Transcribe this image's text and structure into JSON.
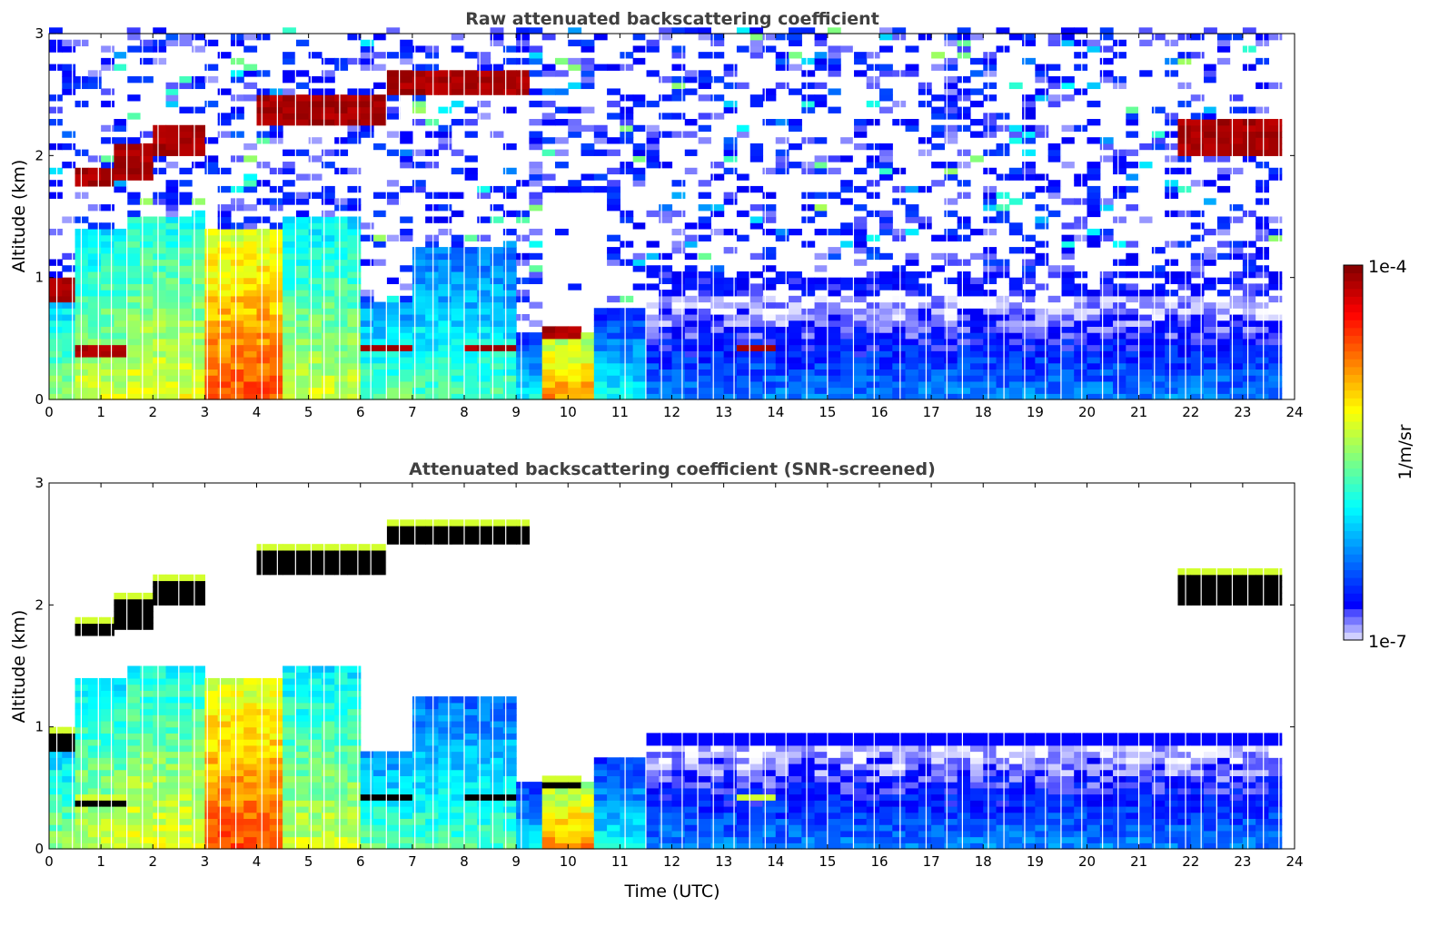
{
  "chart_data": {
    "type": "heatmap",
    "panels": [
      {
        "id": "raw",
        "title": "Raw attenuated backscattering coefficient",
        "xlabel": "",
        "ylabel": "Altitude (km)",
        "screened": false
      },
      {
        "id": "screened",
        "title": "Attenuated backscattering coefficient (SNR-screened)",
        "xlabel": "Time (UTC)",
        "ylabel": "Altitude (km)",
        "screened": true
      }
    ],
    "xlim": [
      0,
      24
    ],
    "ylim": [
      0,
      3
    ],
    "xticks": [
      "0",
      "1",
      "2",
      "3",
      "4",
      "5",
      "6",
      "7",
      "8",
      "9",
      "10",
      "11",
      "12",
      "13",
      "14",
      "15",
      "16",
      "17",
      "18",
      "19",
      "20",
      "21",
      "22",
      "23",
      "24"
    ],
    "yticks": [
      "0",
      "1",
      "2",
      "3"
    ],
    "colorbar": {
      "label": "1/m/sr",
      "min_label": "1e-7",
      "max_label": "1e-4",
      "range_log10": [
        -7,
        -4
      ],
      "colormap": "jet"
    },
    "data_end_utc": 23.8,
    "boundary_layer": [
      {
        "t": [
          0,
          0.5
        ],
        "top_km": 1.0,
        "surface_log10": -5.5
      },
      {
        "t": [
          0.5,
          1.5
        ],
        "top_km": 1.4,
        "surface_log10": -5.3
      },
      {
        "t": [
          1.5,
          3.1
        ],
        "top_km": 1.5,
        "surface_log10": -5.2
      },
      {
        "t": [
          3.1,
          4.6
        ],
        "top_km": 1.4,
        "surface_log10": -4.6
      },
      {
        "t": [
          4.6,
          6.0
        ],
        "top_km": 1.5,
        "surface_log10": -5.3
      },
      {
        "t": [
          6.0,
          7.0
        ],
        "top_km": 0.8,
        "surface_log10": -5.6
      },
      {
        "t": [
          7.0,
          9.0
        ],
        "top_km": 1.25,
        "surface_log10": -5.7
      },
      {
        "t": [
          9.0,
          9.5
        ],
        "top_km": 0.55,
        "surface_log10": -5.9
      },
      {
        "t": [
          9.5,
          10.6
        ],
        "top_km": 0.55,
        "surface_log10": -4.8
      },
      {
        "t": [
          10.6,
          11.5
        ],
        "top_km": 0.75,
        "surface_log10": -5.9
      },
      {
        "t": [
          11.5,
          23.8
        ],
        "top_km": 0.85,
        "surface_log10": -6.3
      }
    ],
    "cloud_layers": [
      {
        "t": [
          0.0,
          0.5
        ],
        "base_km": 0.8,
        "top_km": 1.0
      },
      {
        "t": [
          0.5,
          1.3
        ],
        "base_km": 1.75,
        "top_km": 1.9
      },
      {
        "t": [
          1.3,
          1.9
        ],
        "base_km": 1.8,
        "top_km": 2.1
      },
      {
        "t": [
          2.0,
          3.1
        ],
        "base_km": 2.0,
        "top_km": 2.25
      },
      {
        "t": [
          4.0,
          6.6
        ],
        "base_km": 2.25,
        "top_km": 2.5
      },
      {
        "t": [
          6.6,
          9.2
        ],
        "base_km": 2.48,
        "top_km": 2.7
      },
      {
        "t": [
          21.7,
          23.8
        ],
        "base_km": 2.0,
        "top_km": 2.3
      },
      {
        "t": [
          0.6,
          1.5
        ],
        "base_km": 0.35,
        "top_km": 0.45
      },
      {
        "t": [
          6.0,
          7.0
        ],
        "base_km": 0.38,
        "top_km": 0.47
      },
      {
        "t": [
          8.0,
          9.0
        ],
        "base_km": 0.38,
        "top_km": 0.47
      },
      {
        "t": [
          9.5,
          10.2
        ],
        "base_km": 0.48,
        "top_km": 0.58
      },
      {
        "t": [
          13.3,
          14.0
        ],
        "base_km": 0.4,
        "top_km": 0.45
      }
    ],
    "missing_profiles_utc": [
      0.15,
      0.45,
      0.62,
      0.95,
      1.2,
      1.5,
      1.8,
      2.1,
      2.5,
      2.8,
      3.05,
      3.3,
      3.6,
      4.1,
      4.4,
      4.75,
      5.05,
      5.3,
      5.6,
      5.95,
      6.2,
      6.5,
      6.75,
      7.05,
      7.4,
      7.7,
      8.0,
      8.3,
      8.55,
      8.8,
      9.1,
      11.1,
      11.5,
      11.8,
      12.2,
      12.5,
      12.8,
      13.2,
      13.5,
      13.8,
      14.2,
      14.6,
      15.0,
      15.5,
      15.9,
      16.4,
      16.9,
      17.3,
      17.6,
      18.1,
      18.4,
      18.8,
      19.2,
      19.5,
      19.9,
      20.3,
      20.6,
      21.0,
      21.3,
      21.6,
      21.9,
      22.2,
      22.5,
      22.8,
      23.1,
      23.4,
      23.7
    ]
  }
}
